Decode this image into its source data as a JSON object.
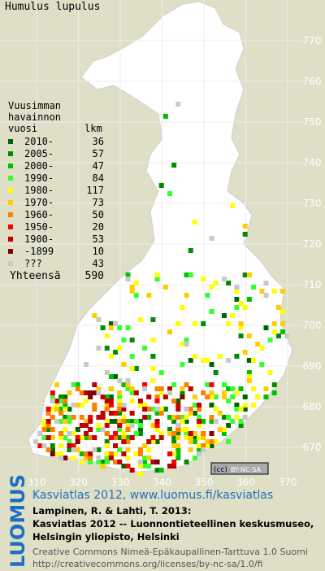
{
  "title": "Humulus lupulus",
  "legend": {
    "heading": [
      "Vuusimman",
      "havainnon",
      "vuosi"
    ],
    "count_heading": "lkm",
    "rows": [
      {
        "label": "2010-",
        "count": 36,
        "color": "#006400"
      },
      {
        "label": "2005-",
        "count": 57,
        "color": "#008c00"
      },
      {
        "label": "2000-",
        "count": 47,
        "color": "#00c000"
      },
      {
        "label": "1990-",
        "count": 84,
        "color": "#33ff33"
      },
      {
        "label": "1980-",
        "count": 117,
        "color": "#ffff00"
      },
      {
        "label": "1970-",
        "count": 73,
        "color": "#ffcc00"
      },
      {
        "label": "1960-",
        "count": 50,
        "color": "#ff8000"
      },
      {
        "label": "1950-",
        "count": 20,
        "color": "#ff0000"
      },
      {
        "label": "1900-",
        "count": 53,
        "color": "#c00000"
      },
      {
        "label": "-1899",
        "count": 10,
        "color": "#800000"
      },
      {
        "label": "???",
        "count": 43,
        "color": "#c8c8c8"
      }
    ],
    "total": {
      "label": "Yhteensä",
      "count": 590
    }
  },
  "axes": {
    "x": [
      "310",
      "320",
      "330",
      "340",
      "350",
      "360",
      "370"
    ],
    "y": [
      "770",
      "760",
      "750",
      "740",
      "730",
      "720",
      "710",
      "700",
      "690",
      "680",
      "670"
    ]
  },
  "license_badge": {
    "cc": "(cc)",
    "text": "BY-NC-SA"
  },
  "footer": {
    "logo": "LUOMUS",
    "link": "Kasviatlas 2012, www.luomus.fi/kasviatlas",
    "citation": [
      "Lampinen, R. & Lahti, T. 2013:",
      "Kasviatlas 2012 -- Luonnontieteellinen keskusmuseo,",
      "Helsingin yliopisto, Helsinki"
    ],
    "license": [
      "Creative Commons Nimeä-Epäkaupallinen-Tarttuva 1.0 Suomi",
      "http://creativecommons.org/licenses/by-nc-sa/1.0/fi"
    ]
  }
}
